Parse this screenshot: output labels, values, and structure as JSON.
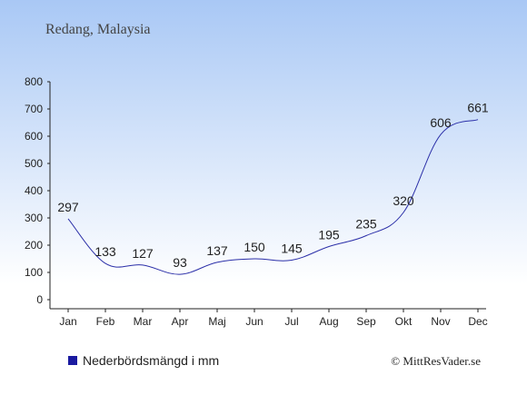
{
  "chart_data": {
    "type": "line",
    "title": "Redang, Malaysia",
    "categories": [
      "Jan",
      "Feb",
      "Mar",
      "Apr",
      "Maj",
      "Jun",
      "Jul",
      "Aug",
      "Sep",
      "Okt",
      "Nov",
      "Dec"
    ],
    "series": [
      {
        "name": "Nederbördsmängd i mm",
        "values": [
          297,
          133,
          127,
          93,
          137,
          150,
          145,
          195,
          235,
          320,
          606,
          661
        ]
      }
    ],
    "ylim": [
      0,
      800
    ],
    "yticks": [
      0,
      100,
      200,
      300,
      400,
      500,
      600,
      700,
      800
    ],
    "xlabel": "",
    "ylabel": "",
    "grid": false,
    "legend_position": "bottom-left",
    "colors": {
      "line": "#2b2fa8",
      "legend_marker": "#1a1aa0",
      "bg_top": "#a9c8f5",
      "bg_bottom": "#ffffff"
    }
  },
  "legend": {
    "label": "Nederbördsmängd i mm"
  },
  "credit": "© MittResVader.se"
}
